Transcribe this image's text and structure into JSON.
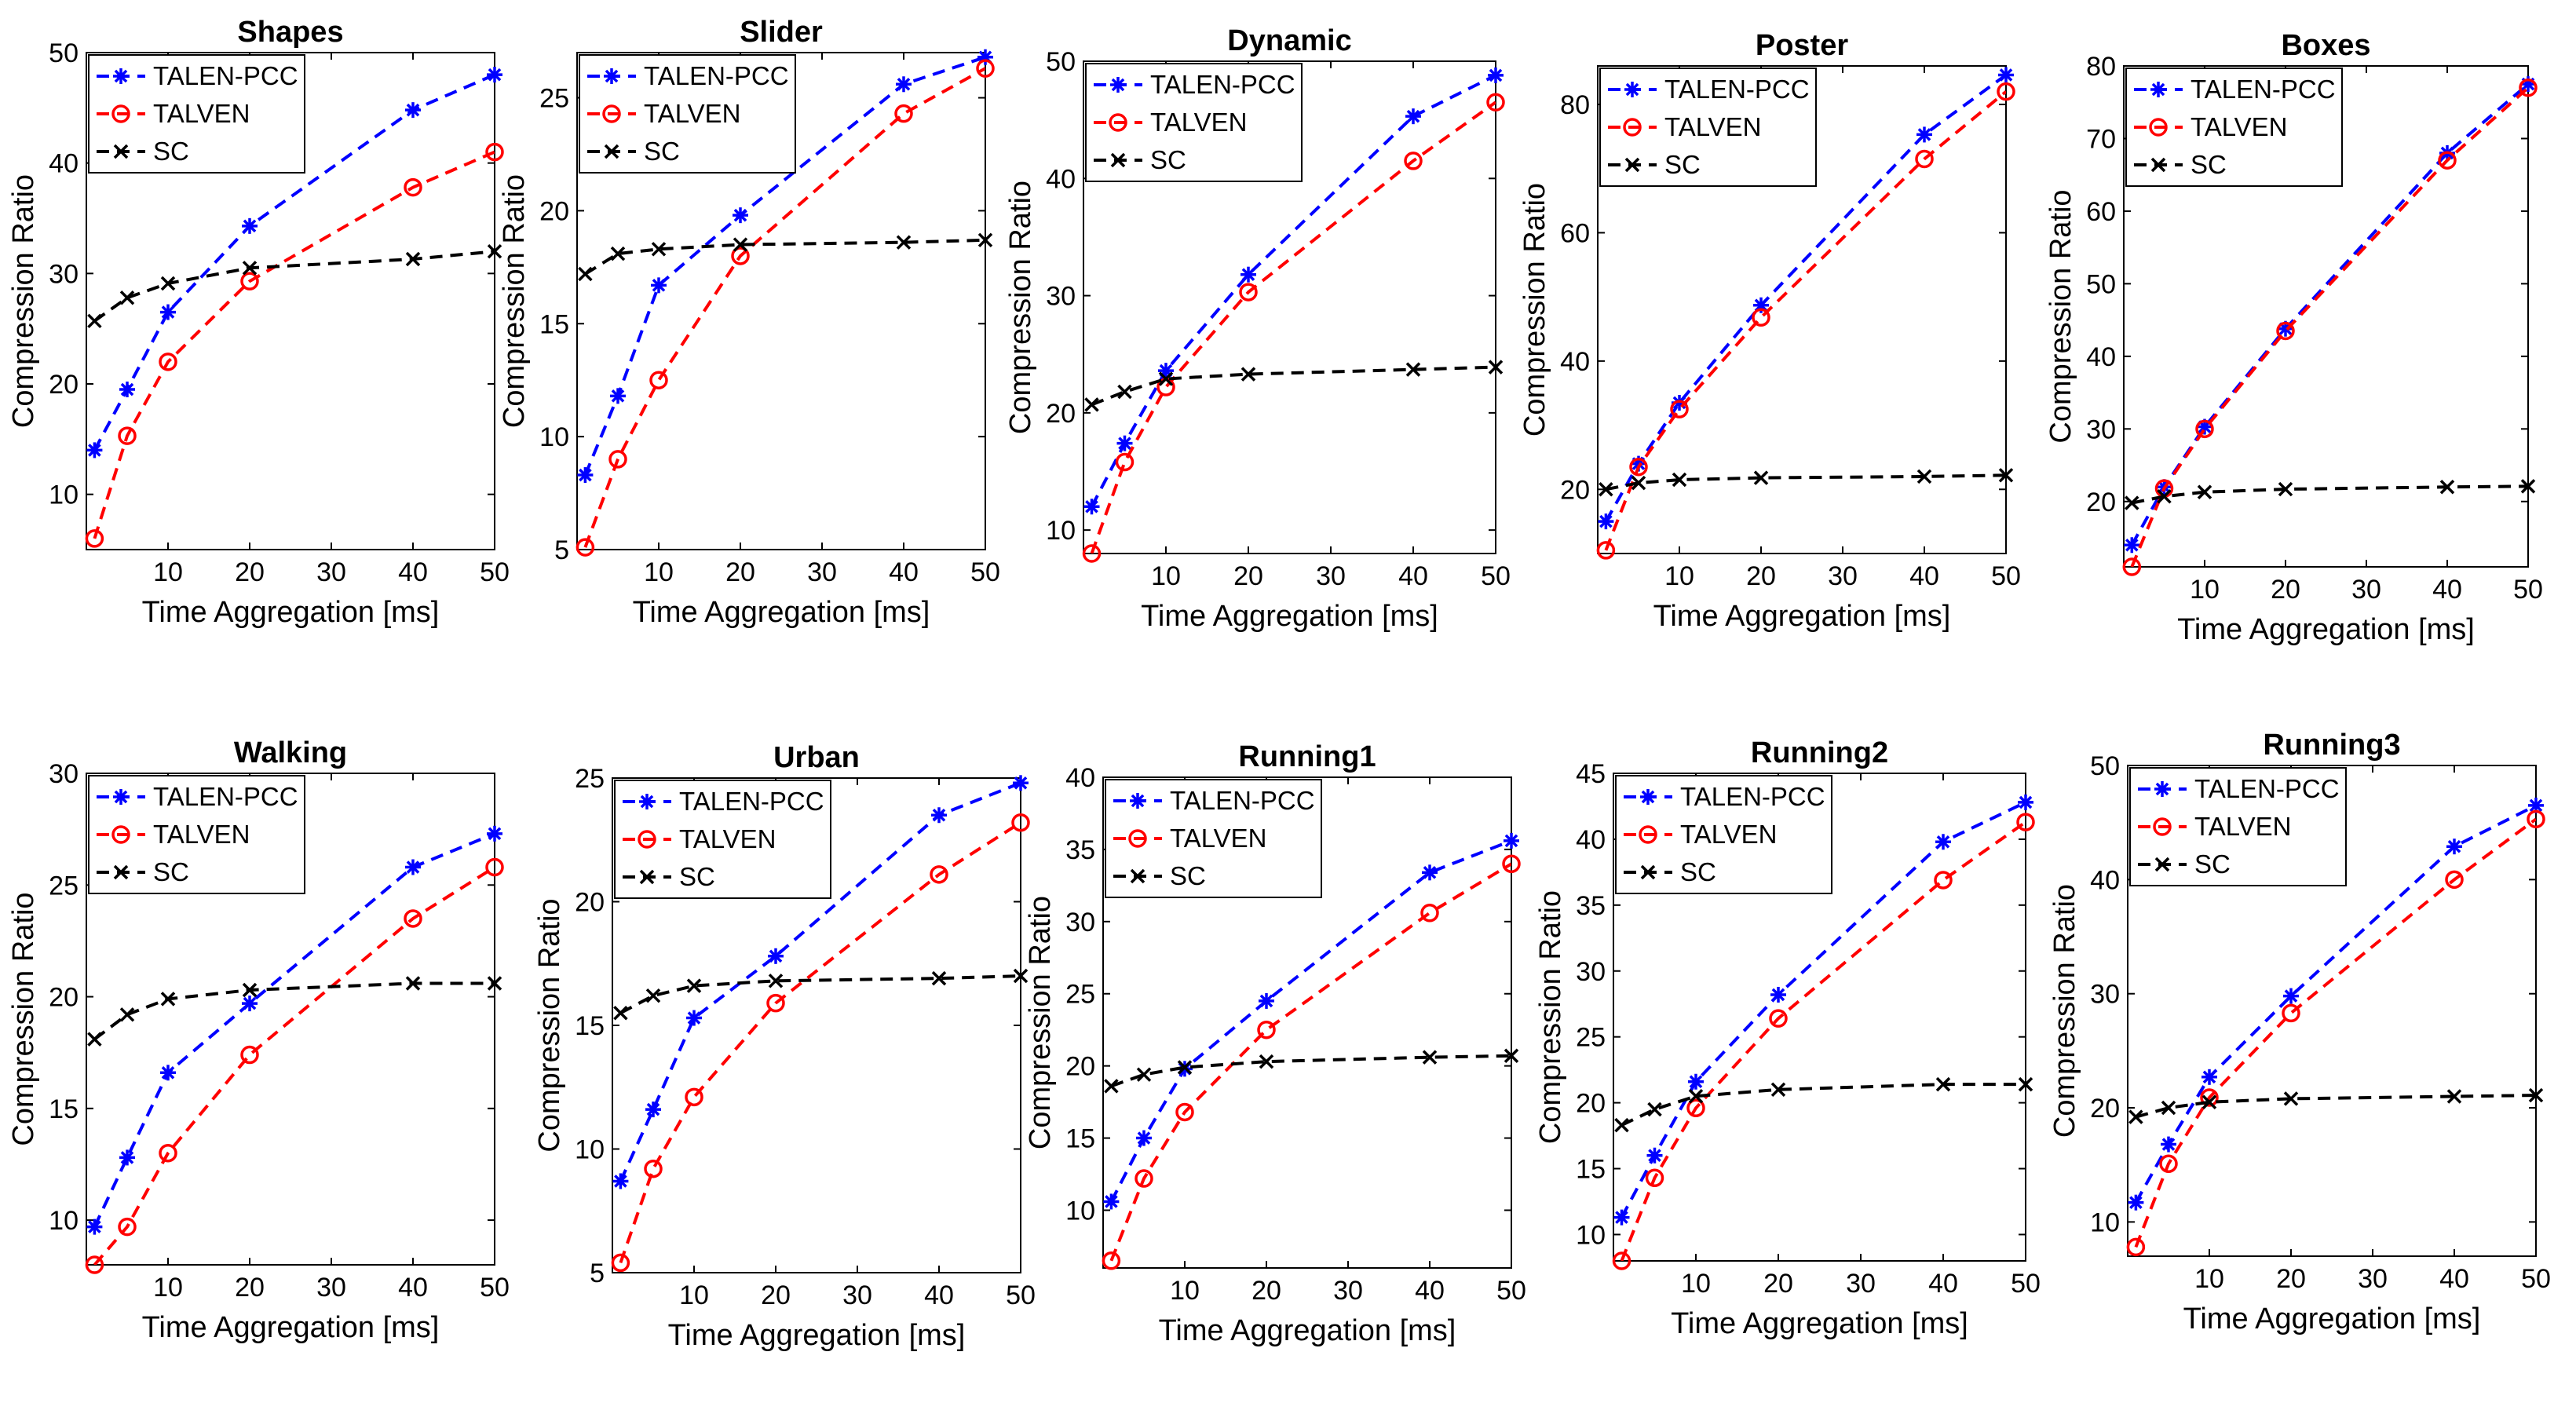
{
  "chart_data": [
    {
      "type": "line",
      "title": "Shapes",
      "xlabel": "Time Aggregation [ms]",
      "ylabel": "Compression Ratio",
      "xlim": [
        0,
        50
      ],
      "ylim": [
        5,
        50
      ],
      "xticks": [
        10,
        20,
        30,
        40,
        50
      ],
      "yticks": [
        10,
        20,
        30,
        40,
        50
      ],
      "grid": false,
      "legend_position": "top-left",
      "x": [
        1,
        5,
        10,
        20,
        40,
        50
      ],
      "series": [
        {
          "name": "TALEN-PCC",
          "color": "#0000ff",
          "marker": "asterisk",
          "values": [
            14,
            19.5,
            26.5,
            34.3,
            44.8,
            48
          ]
        },
        {
          "name": "TALVEN",
          "color": "#ff0000",
          "marker": "circle",
          "values": [
            6,
            15.3,
            22,
            29.3,
            37.8,
            41
          ]
        },
        {
          "name": "SC",
          "color": "#000000",
          "marker": "x",
          "values": [
            25.7,
            27.8,
            29.1,
            30.5,
            31.3,
            32
          ]
        }
      ]
    },
    {
      "type": "line",
      "title": "Slider",
      "xlabel": "Time Aggregation [ms]",
      "ylabel": "Compression Ratio",
      "xlim": [
        0,
        50
      ],
      "ylim": [
        5,
        27
      ],
      "xticks": [
        10,
        20,
        30,
        40,
        50
      ],
      "yticks": [
        5,
        10,
        15,
        20,
        25
      ],
      "grid": false,
      "legend_position": "top-left",
      "x": [
        1,
        5,
        10,
        20,
        40,
        50
      ],
      "series": [
        {
          "name": "TALEN-PCC",
          "color": "#0000ff",
          "marker": "asterisk",
          "values": [
            8.3,
            11.8,
            16.7,
            19.8,
            25.6,
            26.8
          ]
        },
        {
          "name": "TALVEN",
          "color": "#ff0000",
          "marker": "circle",
          "values": [
            5.1,
            9,
            12.5,
            18,
            24.3,
            26.3
          ]
        },
        {
          "name": "SC",
          "color": "#000000",
          "marker": "x",
          "values": [
            17.2,
            18.1,
            18.3,
            18.5,
            18.6,
            18.7
          ]
        }
      ]
    },
    {
      "type": "line",
      "title": "Dynamic",
      "xlabel": "Time Aggregation [ms]",
      "ylabel": "Compression Ratio",
      "xlim": [
        0,
        50
      ],
      "ylim": [
        8,
        50
      ],
      "xticks": [
        10,
        20,
        30,
        40,
        50
      ],
      "yticks": [
        10,
        20,
        30,
        40,
        50
      ],
      "grid": false,
      "legend_position": "top-left",
      "x": [
        1,
        5,
        10,
        20,
        40,
        50
      ],
      "series": [
        {
          "name": "TALEN-PCC",
          "color": "#0000ff",
          "marker": "asterisk",
          "values": [
            12,
            17.4,
            23.6,
            31.8,
            45.3,
            48.8
          ]
        },
        {
          "name": "TALVEN",
          "color": "#ff0000",
          "marker": "circle",
          "values": [
            8,
            15.8,
            22.2,
            30.3,
            41.5,
            46.5
          ]
        },
        {
          "name": "SC",
          "color": "#000000",
          "marker": "x",
          "values": [
            20.7,
            21.8,
            22.9,
            23.3,
            23.7,
            23.9
          ]
        }
      ]
    },
    {
      "type": "line",
      "title": "Poster",
      "xlabel": "Time Aggregation [ms]",
      "ylabel": "Compression Ratio",
      "xlim": [
        0,
        50
      ],
      "ylim": [
        10,
        86
      ],
      "xticks": [
        10,
        20,
        30,
        40,
        50
      ],
      "yticks": [
        20,
        40,
        60,
        80
      ],
      "grid": false,
      "legend_position": "top-left",
      "x": [
        1,
        5,
        10,
        20,
        40,
        50
      ],
      "series": [
        {
          "name": "TALEN-PCC",
          "color": "#0000ff",
          "marker": "asterisk",
          "values": [
            15,
            24,
            33.5,
            48.7,
            75.3,
            84.6
          ]
        },
        {
          "name": "TALVEN",
          "color": "#ff0000",
          "marker": "circle",
          "values": [
            10.5,
            23.5,
            32.5,
            46.8,
            71.5,
            82
          ]
        },
        {
          "name": "SC",
          "color": "#000000",
          "marker": "x",
          "values": [
            20,
            21,
            21.5,
            21.8,
            22,
            22.2
          ]
        }
      ]
    },
    {
      "type": "line",
      "title": "Boxes",
      "xlabel": "Time Aggregation [ms]",
      "ylabel": "Compression Ratio",
      "xlim": [
        0,
        50
      ],
      "ylim": [
        11,
        80
      ],
      "xticks": [
        10,
        20,
        30,
        40,
        50
      ],
      "yticks": [
        20,
        30,
        40,
        50,
        60,
        70,
        80
      ],
      "grid": false,
      "legend_position": "top-left",
      "x": [
        1,
        5,
        10,
        20,
        40,
        50
      ],
      "series": [
        {
          "name": "TALEN-PCC",
          "color": "#0000ff",
          "marker": "asterisk",
          "values": [
            14,
            22,
            30.3,
            43.8,
            68,
            77.5
          ]
        },
        {
          "name": "TALVEN",
          "color": "#ff0000",
          "marker": "circle",
          "values": [
            11,
            21.8,
            30,
            43.5,
            67,
            77
          ]
        },
        {
          "name": "SC",
          "color": "#000000",
          "marker": "x",
          "values": [
            19.8,
            20.7,
            21.3,
            21.7,
            22,
            22.1
          ]
        }
      ]
    },
    {
      "type": "line",
      "title": "Walking",
      "xlabel": "Time Aggregation [ms]",
      "ylabel": "Compression Ratio",
      "xlim": [
        0,
        50
      ],
      "ylim": [
        8,
        30
      ],
      "xticks": [
        10,
        20,
        30,
        40,
        50
      ],
      "yticks": [
        10,
        15,
        20,
        25,
        30
      ],
      "grid": false,
      "legend_position": "top-left",
      "x": [
        1,
        5,
        10,
        20,
        40,
        50
      ],
      "series": [
        {
          "name": "TALEN-PCC",
          "color": "#0000ff",
          "marker": "asterisk",
          "values": [
            9.7,
            12.8,
            16.6,
            19.7,
            25.8,
            27.3
          ]
        },
        {
          "name": "TALVEN",
          "color": "#ff0000",
          "marker": "circle",
          "values": [
            8,
            9.7,
            13,
            17.4,
            23.5,
            25.8
          ]
        },
        {
          "name": "SC",
          "color": "#000000",
          "marker": "x",
          "values": [
            18.1,
            19.2,
            19.9,
            20.3,
            20.6,
            20.6
          ]
        }
      ]
    },
    {
      "type": "line",
      "title": "Urban",
      "xlabel": "Time Aggregation [ms]",
      "ylabel": "Compression Ratio",
      "xlim": [
        0,
        50
      ],
      "ylim": [
        5,
        25
      ],
      "xticks": [
        10,
        20,
        30,
        40,
        50
      ],
      "yticks": [
        5,
        10,
        15,
        20,
        25
      ],
      "grid": false,
      "legend_position": "top-left",
      "x": [
        1,
        5,
        10,
        20,
        40,
        50
      ],
      "series": [
        {
          "name": "TALEN-PCC",
          "color": "#0000ff",
          "marker": "asterisk",
          "values": [
            8.7,
            11.6,
            15.3,
            17.8,
            23.5,
            24.8
          ]
        },
        {
          "name": "TALVEN",
          "color": "#ff0000",
          "marker": "circle",
          "values": [
            5.4,
            9.2,
            12.1,
            15.9,
            21.1,
            23.2
          ]
        },
        {
          "name": "SC",
          "color": "#000000",
          "marker": "x",
          "values": [
            15.5,
            16.2,
            16.6,
            16.8,
            16.9,
            17
          ]
        }
      ]
    },
    {
      "type": "line",
      "title": "Running1",
      "xlabel": "Time Aggregation [ms]",
      "ylabel": "Compression Ratio",
      "xlim": [
        0,
        50
      ],
      "ylim": [
        6,
        40
      ],
      "xticks": [
        10,
        20,
        30,
        40,
        50
      ],
      "yticks": [
        10,
        15,
        20,
        25,
        30,
        35,
        40
      ],
      "grid": false,
      "legend_position": "top-left",
      "x": [
        1,
        5,
        10,
        20,
        40,
        50
      ],
      "series": [
        {
          "name": "TALEN-PCC",
          "color": "#0000ff",
          "marker": "asterisk",
          "values": [
            10.6,
            15,
            19.8,
            24.5,
            33.4,
            35.6
          ]
        },
        {
          "name": "TALVEN",
          "color": "#ff0000",
          "marker": "circle",
          "values": [
            6.5,
            12.2,
            16.8,
            22.5,
            30.6,
            34
          ]
        },
        {
          "name": "SC",
          "color": "#000000",
          "marker": "x",
          "values": [
            18.6,
            19.4,
            19.9,
            20.3,
            20.6,
            20.7
          ]
        }
      ]
    },
    {
      "type": "line",
      "title": "Running2",
      "xlabel": "Time Aggregation [ms]",
      "ylabel": "Compression Ratio",
      "xlim": [
        0,
        50
      ],
      "ylim": [
        8,
        45
      ],
      "xticks": [
        10,
        20,
        30,
        40,
        50
      ],
      "yticks": [
        10,
        15,
        20,
        25,
        30,
        35,
        40,
        45
      ],
      "grid": false,
      "legend_position": "top-left",
      "x": [
        1,
        5,
        10,
        20,
        40,
        50
      ],
      "series": [
        {
          "name": "TALEN-PCC",
          "color": "#0000ff",
          "marker": "asterisk",
          "values": [
            11.3,
            16,
            21.6,
            28.2,
            39.8,
            42.8
          ]
        },
        {
          "name": "TALVEN",
          "color": "#ff0000",
          "marker": "circle",
          "values": [
            8,
            14.3,
            19.6,
            26.4,
            36.9,
            41.3
          ]
        },
        {
          "name": "SC",
          "color": "#000000",
          "marker": "x",
          "values": [
            18.3,
            19.5,
            20.5,
            21,
            21.4,
            21.4
          ]
        }
      ]
    },
    {
      "type": "line",
      "title": "Running3",
      "xlabel": "Time Aggregation [ms]",
      "ylabel": "Compression Ratio",
      "xlim": [
        0,
        50
      ],
      "ylim": [
        7,
        50
      ],
      "xticks": [
        10,
        20,
        30,
        40,
        50
      ],
      "yticks": [
        10,
        20,
        30,
        40,
        50
      ],
      "grid": false,
      "legend_position": "top-left",
      "x": [
        1,
        5,
        10,
        20,
        40,
        50
      ],
      "series": [
        {
          "name": "TALEN-PCC",
          "color": "#0000ff",
          "marker": "asterisk",
          "values": [
            11.7,
            16.8,
            22.7,
            29.8,
            42.9,
            46.5
          ]
        },
        {
          "name": "TALVEN",
          "color": "#ff0000",
          "marker": "circle",
          "values": [
            7.8,
            15.1,
            20.9,
            28.3,
            40,
            45.3
          ]
        },
        {
          "name": "SC",
          "color": "#000000",
          "marker": "x",
          "values": [
            19.2,
            20,
            20.5,
            20.8,
            21,
            21.1
          ]
        }
      ]
    }
  ]
}
